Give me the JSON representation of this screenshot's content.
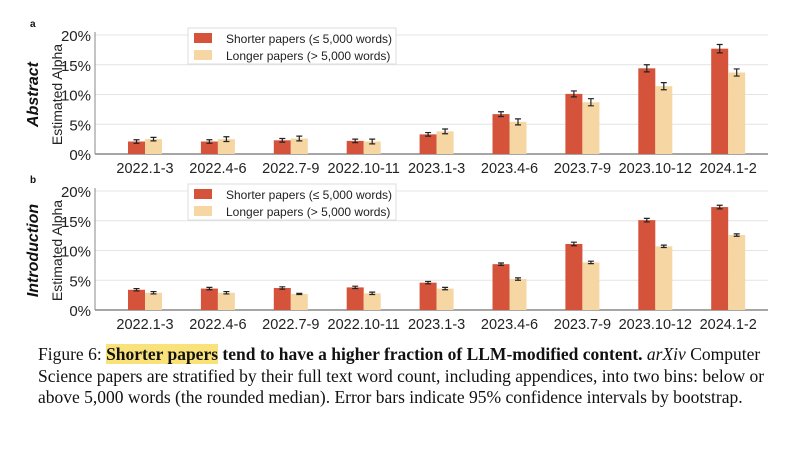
{
  "chart_data": [
    {
      "type": "bar",
      "panel_label": "a",
      "title": "Abstract",
      "ylabel": "Estimated Alpha",
      "ylim": [
        0,
        20
      ],
      "yticks": [
        "0%",
        "5%",
        "10%",
        "15%",
        "20%"
      ],
      "grid": true,
      "legend_position": "top-left",
      "categories": [
        "2022.1-3",
        "2022.4-6",
        "2022.7-9",
        "2022.10-11",
        "2023.1-3",
        "2023.4-6",
        "2023.7-9",
        "2023.10-12",
        "2024.1-2"
      ],
      "series": [
        {
          "name": "Shorter papers (≤ 5,000 words)",
          "color": "#d4533a",
          "values": [
            2.1,
            2.1,
            2.3,
            2.2,
            3.3,
            6.7,
            10.1,
            14.4,
            17.7
          ],
          "errors": [
            0.3,
            0.3,
            0.3,
            0.3,
            0.3,
            0.4,
            0.5,
            0.6,
            0.7
          ]
        },
        {
          "name": "Longer papers (> 5,000 words)",
          "color": "#f6d7a3",
          "values": [
            2.5,
            2.5,
            2.6,
            2.1,
            3.8,
            5.4,
            8.7,
            11.4,
            13.7
          ],
          "errors": [
            0.3,
            0.4,
            0.4,
            0.4,
            0.4,
            0.5,
            0.6,
            0.6,
            0.6
          ]
        }
      ]
    },
    {
      "type": "bar",
      "panel_label": "b",
      "title": "Introduction",
      "ylabel": "Estimated Alpha",
      "ylim": [
        0,
        20
      ],
      "yticks": [
        "0%",
        "5%",
        "10%",
        "15%",
        "20%"
      ],
      "grid": true,
      "legend_position": "top-left",
      "categories": [
        "2022.1-3",
        "2022.4-6",
        "2022.7-9",
        "2022.10-11",
        "2023.1-3",
        "2023.4-6",
        "2023.7-9",
        "2023.10-12",
        "2024.1-2"
      ],
      "series": [
        {
          "name": "Shorter papers (≤ 5,000 words)",
          "color": "#d4533a",
          "values": [
            3.4,
            3.6,
            3.7,
            3.8,
            4.6,
            7.7,
            11.1,
            15.1,
            17.3
          ],
          "errors": [
            0.2,
            0.2,
            0.2,
            0.2,
            0.2,
            0.2,
            0.3,
            0.3,
            0.3
          ]
        },
        {
          "name": "Longer papers (> 5,000 words)",
          "color": "#f6d7a3",
          "values": [
            2.9,
            2.9,
            2.7,
            2.8,
            3.6,
            5.2,
            8.0,
            10.7,
            12.6
          ],
          "errors": [
            0.2,
            0.2,
            0.1,
            0.2,
            0.2,
            0.2,
            0.2,
            0.2,
            0.2
          ]
        }
      ]
    }
  ],
  "caption": {
    "prefix": "Figure 6: ",
    "highlight": "Shorter papers",
    "bold_rest": " tend to have a higher fraction of LLM-modified content.",
    "italic": " arXiv",
    "body": " Computer Science papers are stratified by their full text word count, including appendices, into two bins: below or above 5,000 words (the rounded median). Error bars indicate 95% confidence intervals by bootstrap."
  }
}
